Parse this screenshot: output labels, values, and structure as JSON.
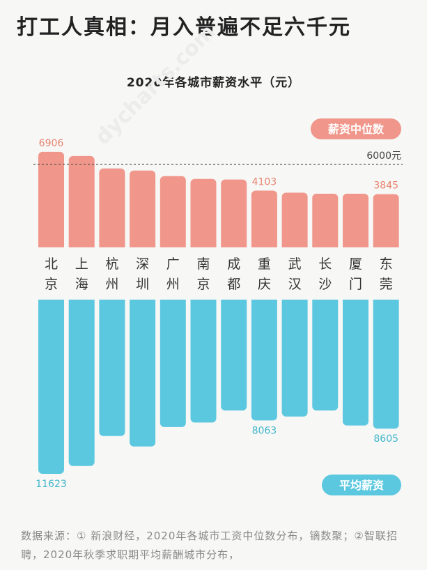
{
  "headline": "打工人真相：月入普遍不足六千元",
  "source_note": "数据来源：① 新浪财经，2020年各城市工资中位数分布，镝数聚；②智联招聘，2020年秋季求职期平均薪酬城市分布，",
  "watermark": "dycharts.com",
  "chart_data": {
    "type": "bar",
    "title": "2020年各城市薪资水平（元）",
    "categories": [
      "北京",
      "上海",
      "杭州",
      "深圳",
      "广州",
      "南京",
      "成都",
      "重庆",
      "武汉",
      "长沙",
      "厦门",
      "东莞"
    ],
    "series": [
      {
        "name": "薪资中位数",
        "color": "#f0968a",
        "values": [
          6906,
          6600,
          5700,
          5550,
          5150,
          4950,
          4900,
          4103,
          3950,
          3880,
          3880,
          3845
        ],
        "labeled": {
          "北京": "6906",
          "重庆": "4103",
          "东莞": "3845"
        }
      },
      {
        "name": "平均薪资",
        "color": "#5bc8df",
        "values": [
          11623,
          11100,
          9100,
          9800,
          8500,
          8200,
          7400,
          8063,
          7800,
          7400,
          8400,
          8605
        ],
        "labeled": {
          "北京": "11623",
          "重庆": "8063",
          "东莞": "8605"
        }
      }
    ],
    "reference_line": {
      "value": 6000,
      "label": "6000元",
      "series": "薪资中位数"
    },
    "label_color_top": "#e8836f",
    "label_color_bottom": "#3fb6c9"
  }
}
